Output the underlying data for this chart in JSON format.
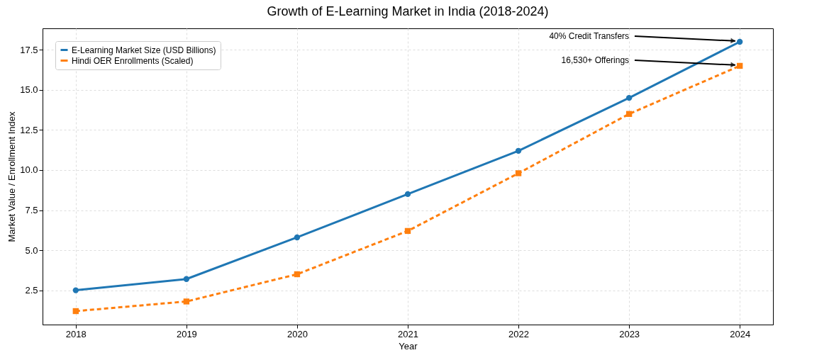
{
  "chart_data": {
    "type": "line",
    "title": "Growth of E-Learning Market in India (2018-2024)",
    "xlabel": "Year",
    "ylabel": "Market Value / Enrollment Index",
    "x": [
      2018,
      2019,
      2020,
      2021,
      2022,
      2023,
      2024
    ],
    "series": [
      {
        "name": "E-Learning Market Size (USD Billions)",
        "color": "#1f77b4",
        "values": [
          2.5,
          3.2,
          5.8,
          8.5,
          11.2,
          14.5,
          18.0
        ],
        "marker": "circle",
        "line_style": "solid"
      },
      {
        "name": "Hindi OER Enrollments (Scaled)",
        "color": "#ff7f0e",
        "values": [
          1.2,
          1.8,
          3.5,
          6.2,
          9.8,
          13.5,
          16.5
        ],
        "marker": "square",
        "line_style": "dashed"
      }
    ],
    "xlim": [
      2017.7,
      2024.3
    ],
    "xticks": [
      2018,
      2019,
      2020,
      2021,
      2022,
      2023,
      2024
    ],
    "ylim": [
      0.36,
      18.84
    ],
    "yticks": [
      2.5,
      {
        "value": 5,
        "label": "5.0"
      },
      7.5,
      {
        "value": 10,
        "label": "10.0"
      },
      12.5,
      {
        "value": 15,
        "label": "15.0"
      },
      17.5
    ],
    "grid": true,
    "legend": "top left",
    "annotations": [
      {
        "text": "40% Credit Transfers",
        "x": 2024,
        "y": 18.0
      },
      {
        "text": "16,530+ Offerings",
        "x": 2024,
        "y": 16.5
      }
    ]
  }
}
